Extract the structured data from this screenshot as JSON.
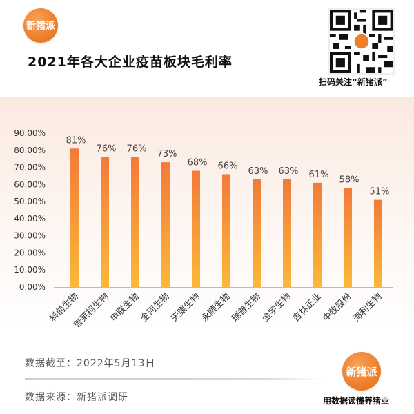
{
  "brand": {
    "logo_text": "新猪派"
  },
  "title": "2021年各大企业疫苗板块毛利率",
  "qr_caption": "扫码关注“新猪派”",
  "footer": {
    "date_label": "数据截至：2022年5月13日",
    "source_label": "数据来源：新猪派调研",
    "slogan": "用数据读懂养猪业"
  },
  "colors": {
    "bar_top": "#f37a3a",
    "bar_bottom": "#fbb83a",
    "accent": "#ee7f2a"
  },
  "chart_data": {
    "type": "bar",
    "categories": [
      "科前生物",
      "普莱柯生物",
      "申联生物",
      "金河生物",
      "天康生物",
      "永顺生物",
      "瑞普生物",
      "金宇生物",
      "吉林正业",
      "中牧股份",
      "海利生物"
    ],
    "values": [
      81,
      76,
      76,
      73,
      68,
      66,
      63,
      63,
      61,
      58,
      51
    ],
    "data_labels": [
      "81%",
      "76%",
      "76%",
      "73%",
      "68%",
      "66%",
      "63%",
      "63%",
      "61%",
      "58%",
      "51%"
    ],
    "ytick_labels": [
      "0.00%",
      "10.00%",
      "20.00%",
      "30.00%",
      "40.00%",
      "50.00%",
      "60.00%",
      "70.00%",
      "80.00%",
      "90.00%"
    ],
    "ylim": [
      0,
      90
    ],
    "grid": false,
    "legend": "none"
  }
}
